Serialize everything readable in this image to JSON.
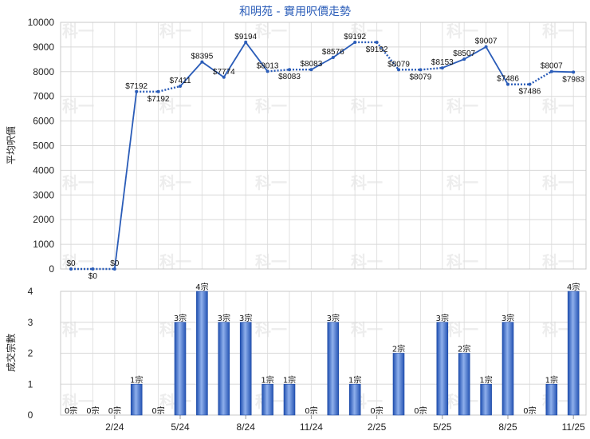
{
  "chart_data": [
    {
      "type": "line",
      "title": "和明苑 - 實用呎價走勢",
      "ylabel": "平均呎價",
      "ylim": [
        0,
        10000
      ],
      "yticks": [
        0,
        1000,
        2000,
        3000,
        4000,
        5000,
        6000,
        7000,
        8000,
        9000,
        10000
      ],
      "x_index": [
        0,
        1,
        2,
        3,
        4,
        5,
        6,
        7,
        8,
        9,
        10,
        11,
        12,
        13,
        14,
        15,
        16,
        17,
        18,
        19,
        20,
        21,
        22,
        23
      ],
      "values": [
        0,
        0,
        0,
        7192,
        7192,
        7411,
        8395,
        7774,
        9194,
        8013,
        8083,
        8083,
        8576,
        9192,
        9192,
        8079,
        8079,
        8153,
        8507,
        9007,
        7486,
        7486,
        8007,
        7983
      ],
      "interpolated": [
        false,
        true,
        false,
        false,
        true,
        false,
        false,
        false,
        false,
        false,
        true,
        false,
        false,
        false,
        true,
        false,
        true,
        false,
        false,
        false,
        false,
        true,
        false,
        false
      ],
      "labels": [
        "$0",
        "$0",
        "$0",
        "$7192",
        "$7192",
        "$7411",
        "$8395",
        "$7774",
        "$9194",
        "$8013",
        "$8083",
        "$8083",
        "$8576",
        "$9192",
        "$9192",
        "$8079",
        "$8079",
        "$8153",
        "$8507",
        "$9007",
        "$7486",
        "$7486",
        "$8007",
        "$7983"
      ],
      "label_below": [
        false,
        true,
        false,
        false,
        true,
        false,
        false,
        false,
        false,
        false,
        true,
        false,
        false,
        false,
        true,
        false,
        true,
        false,
        false,
        false,
        false,
        true,
        false,
        true
      ],
      "color": "#2a5cb8"
    },
    {
      "type": "bar",
      "ylabel": "成交宗數",
      "ylim": [
        0,
        4
      ],
      "yticks": [
        0,
        1,
        2,
        3,
        4
      ],
      "values": [
        0,
        0,
        0,
        1,
        0,
        3,
        4,
        3,
        3,
        1,
        1,
        0,
        3,
        1,
        0,
        2,
        0,
        3,
        2,
        1,
        3,
        0,
        1,
        4
      ],
      "labels": [
        "0宗",
        "0宗",
        "0宗",
        "1宗",
        "0宗",
        "3宗",
        "4宗",
        "3宗",
        "3宗",
        "1宗",
        "1宗",
        "0宗",
        "3宗",
        "1宗",
        "0宗",
        "2宗",
        "0宗",
        "3宗",
        "2宗",
        "1宗",
        "3宗",
        "0宗",
        "1宗",
        "4宗"
      ],
      "x_tick_labels": [
        {
          "index": 2,
          "label": "2/24"
        },
        {
          "index": 5,
          "label": "5/24"
        },
        {
          "index": 8,
          "label": "8/24"
        },
        {
          "index": 11,
          "label": "11/24"
        },
        {
          "index": 14,
          "label": "2/25"
        },
        {
          "index": 17,
          "label": "5/25"
        },
        {
          "index": 20,
          "label": "8/25"
        },
        {
          "index": 23,
          "label": "11/25"
        }
      ],
      "color": "#3a68c8"
    }
  ],
  "watermark": "科一"
}
